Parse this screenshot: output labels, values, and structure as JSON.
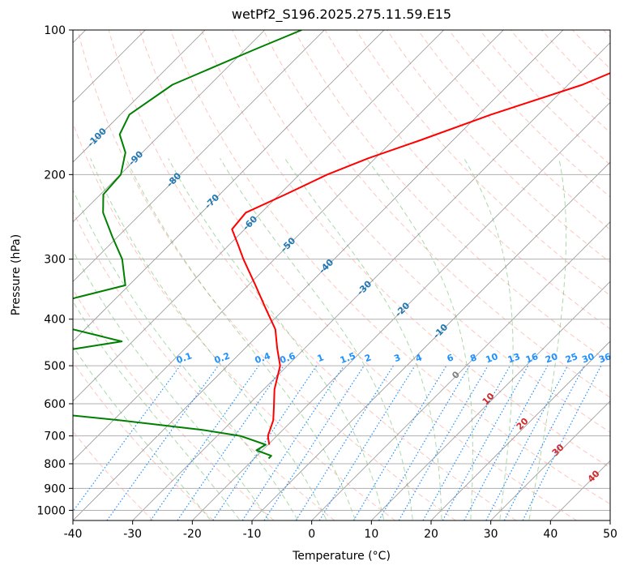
{
  "chart_data": {
    "type": "line",
    "title": "wetPf2_S196.2025.275.11.59.E15",
    "xlabel": "Temperature (°C)",
    "ylabel": "Pressure (hPa)",
    "xlim": [
      -40,
      50
    ],
    "ylim": [
      1050,
      100
    ],
    "y_scale": "log",
    "grid": true,
    "x_ticks": [
      -40,
      -30,
      -20,
      -10,
      0,
      10,
      20,
      30,
      40,
      50
    ],
    "y_ticks": [
      100,
      200,
      300,
      400,
      500,
      600,
      700,
      800,
      900,
      1000
    ],
    "series": [
      {
        "color": "#ff0000",
        "points": [
          [
            100,
            -15.8
          ],
          [
            110,
            -19.5
          ],
          [
            130,
            -27.6
          ],
          [
            150,
            -37.9
          ],
          [
            170,
            -45.6
          ],
          [
            185,
            -51.2
          ],
          [
            200,
            -55.3
          ],
          [
            220,
            -59.0
          ],
          [
            240,
            -62.6
          ],
          [
            260,
            -62.1
          ],
          [
            280,
            -58.5
          ],
          [
            300,
            -55.2
          ],
          [
            340,
            -48.8
          ],
          [
            380,
            -43.2
          ],
          [
            420,
            -38.1
          ],
          [
            460,
            -34.6
          ],
          [
            500,
            -31.2
          ],
          [
            560,
            -28.2
          ],
          [
            610,
            -25.3
          ],
          [
            650,
            -23.2
          ],
          [
            700,
            -21.5
          ],
          [
            730,
            -19.8
          ]
        ]
      },
      {
        "color": "#008000",
        "points": [
          [
            100,
            -83.8
          ],
          [
            110,
            -88.5
          ],
          [
            130,
            -96.3
          ],
          [
            150,
            -98.5
          ],
          [
            165,
            -96.8
          ],
          [
            180,
            -92.8
          ],
          [
            200,
            -89.9
          ],
          [
            220,
            -89.5
          ],
          [
            240,
            -86.5
          ],
          [
            270,
            -80.8
          ],
          [
            300,
            -75.5
          ],
          [
            340,
            -70.6
          ],
          [
            360,
            -76.6
          ],
          [
            380,
            -81.3
          ],
          [
            400,
            -82.2
          ],
          [
            420,
            -72.0
          ],
          [
            445,
            -61.8
          ],
          [
            465,
            -69.9
          ],
          [
            480,
            -90.8
          ],
          [
            490,
            -117.0
          ],
          [
            535,
            -104.0
          ],
          [
            550,
            -77.6
          ],
          [
            580,
            -67.4
          ],
          [
            600,
            -66.8
          ],
          [
            625,
            -63.5
          ],
          [
            650,
            -48.6
          ],
          [
            680,
            -33.5
          ],
          [
            700,
            -26.1
          ],
          [
            730,
            -20.4
          ],
          [
            750,
            -21.0
          ],
          [
            770,
            -17.6
          ],
          [
            780,
            -17.6
          ]
        ]
      }
    ],
    "dry_adiabats_theta_c": [
      -30,
      -20,
      -10,
      0,
      10,
      20,
      30,
      40,
      50,
      60,
      70,
      80,
      90,
      100,
      110,
      120,
      130,
      140,
      150,
      160,
      170,
      180,
      190,
      200,
      210,
      220
    ],
    "moist_adiabats_c": [
      -20,
      -15,
      -10,
      -5,
      0,
      5,
      10,
      15,
      20,
      25,
      30,
      35
    ],
    "isotherm_labels": [
      -100,
      -90,
      -80,
      -70,
      -60,
      -50,
      -40,
      -30,
      -20,
      -10
    ],
    "mixing_ratio_labels": [
      "0.1",
      "0.2",
      "0.4",
      "0.6",
      "1",
      "1.5",
      "2",
      "3",
      "4",
      "6",
      "8",
      "10",
      "13",
      "16",
      "20",
      "25",
      "30",
      "36"
    ],
    "mixing_ratio_values": [
      0.1,
      0.2,
      0.4,
      0.6,
      1,
      1.5,
      2,
      3,
      4,
      6,
      8,
      10,
      13,
      16,
      20,
      25,
      30,
      36
    ],
    "colors": {
      "isotherm": "#1f77b4",
      "mixing_ratio": "#1e90ff",
      "dry_adiabat": "#fa8072",
      "moist_adiabat": "#2ca02c",
      "theta_e_labels": "#d62728",
      "grid": "#b0b0b0"
    },
    "theta_e_labels": [
      {
        "text": "0",
        "value": 0,
        "color": "#808080"
      },
      {
        "text": "10",
        "value": 10,
        "color": "#d62728"
      },
      {
        "text": "20",
        "value": 20,
        "color": "#d62728"
      },
      {
        "text": "30",
        "value": 30,
        "color": "#d62728"
      },
      {
        "text": "40",
        "value": 40,
        "color": "#d62728"
      }
    ]
  }
}
